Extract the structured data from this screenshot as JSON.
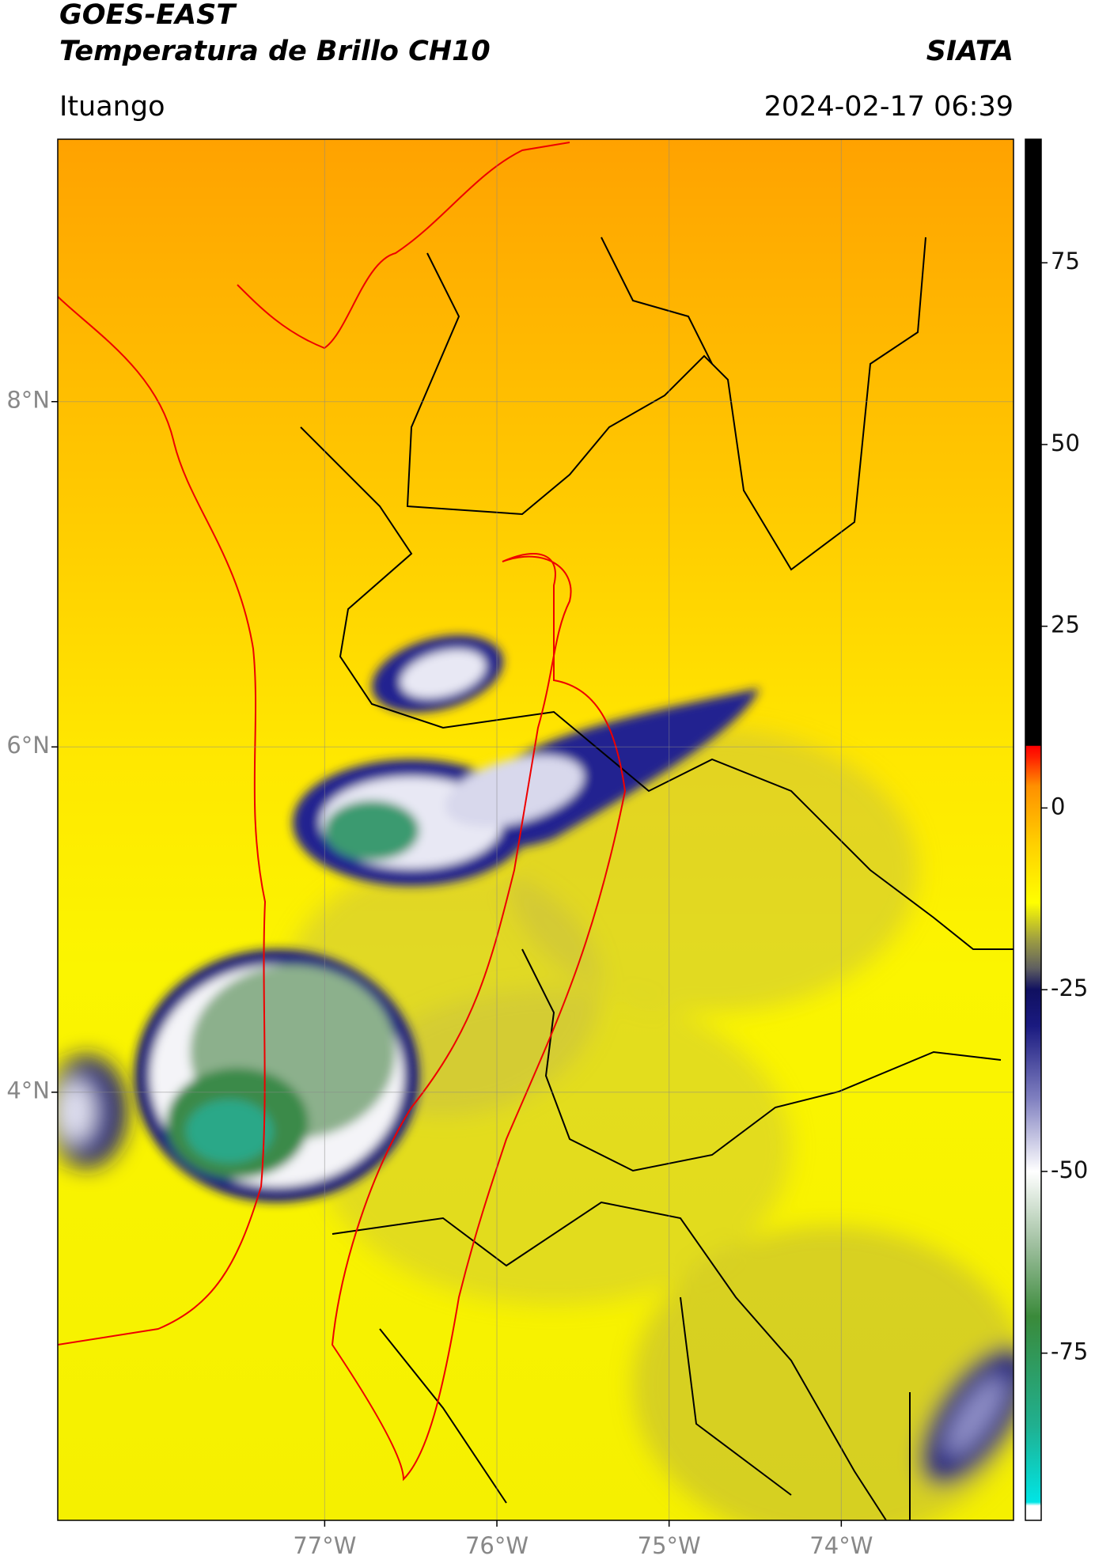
{
  "header": {
    "title": "GOES-EAST",
    "subtitle": "Temperatura de Brillo CH10",
    "brand": "SIATA",
    "region": "Ituango",
    "timestamp": "2024-02-17 06:39"
  },
  "chart_data": {
    "type": "map",
    "xlim": [
      -78.55,
      -73.0
    ],
    "ylim": [
      1.52,
      9.52
    ],
    "xticks": [
      {
        "value": -77,
        "label": "77°W"
      },
      {
        "value": -76,
        "label": "76°W"
      },
      {
        "value": -75,
        "label": "75°W"
      },
      {
        "value": -74,
        "label": "74°W"
      }
    ],
    "yticks": [
      {
        "value": 8,
        "label": "8°N"
      },
      {
        "value": 6,
        "label": "6°N"
      },
      {
        "value": 4,
        "label": "4°N"
      }
    ],
    "grid": true,
    "clim": [
      -98,
      92
    ],
    "cticks": [
      75,
      50,
      25,
      0,
      -25,
      -50,
      -75
    ],
    "colorscale": [
      {
        "value": -98,
        "color": "#ffffff"
      },
      {
        "value": -96,
        "color": "#ffffff"
      },
      {
        "value": -95.5,
        "color": "#00e5e5"
      },
      {
        "value": -85,
        "color": "#20b090"
      },
      {
        "value": -70,
        "color": "#3a8a3a"
      },
      {
        "value": -60,
        "color": "#a0c0a0"
      },
      {
        "value": -50,
        "color": "#ffffff"
      },
      {
        "value": -40,
        "color": "#8080c0"
      },
      {
        "value": -30,
        "color": "#1a1a80"
      },
      {
        "value": -25,
        "color": "#101060"
      },
      {
        "value": -22,
        "color": "#606060"
      },
      {
        "value": -18,
        "color": "#a0a040"
      },
      {
        "value": -13,
        "color": "#ffff00"
      },
      {
        "value": -5,
        "color": "#ffd000"
      },
      {
        "value": 3,
        "color": "#ff9000"
      },
      {
        "value": 7,
        "color": "#ff2000"
      },
      {
        "value": 8.5,
        "color": "#ff0000"
      },
      {
        "value": 8.6,
        "color": "#000000"
      },
      {
        "value": 92,
        "color": "#000000"
      }
    ]
  }
}
